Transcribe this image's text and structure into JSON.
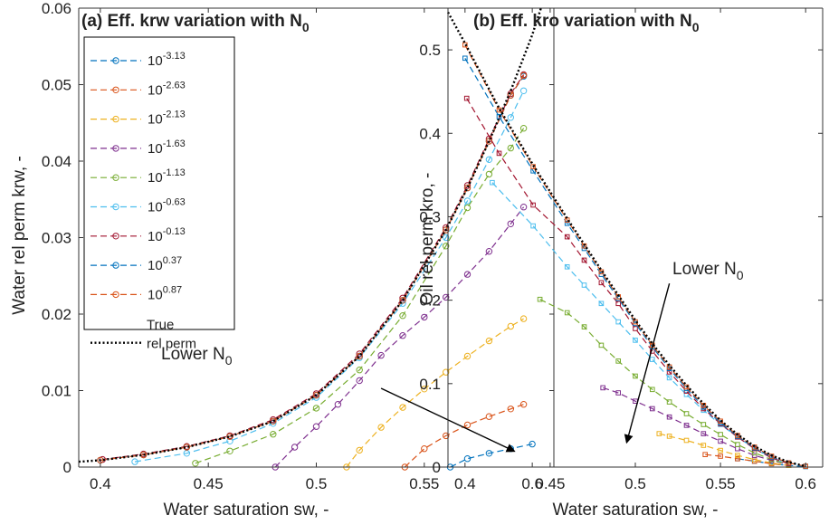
{
  "chart_data": [
    {
      "type": "line",
      "title": "(a)  Eff. krw variation with N",
      "title_subscript": "0",
      "xlabel": "Water saturation sw, -",
      "ylabel": "Water rel perm krw, -",
      "xlim": [
        0.39,
        0.61
      ],
      "ylim": [
        0,
        0.06
      ],
      "xticks": [
        "0.4",
        "0.45",
        "0.5",
        "0.55",
        "0.6"
      ],
      "yticks": [
        "0",
        "0.01",
        "0.02",
        "0.03",
        "0.04",
        "0.05",
        "0.06"
      ],
      "grid": false,
      "legend_placement": "top-left",
      "annotation": {
        "text": "Lower N",
        "subscript": "0",
        "arrow_from": [
          0.53,
          0.0103
        ],
        "arrow_to": [
          0.5915,
          0.0021
        ]
      },
      "series": [
        {
          "name": "10",
          "exp": "-3.13",
          "color": "#0072bd",
          "x": [
            0.562,
            0.57,
            0.58,
            0.59,
            0.6
          ],
          "y": [
            0.0,
            0.0011,
            0.0018,
            0.0024,
            0.003
          ]
        },
        {
          "name": "10",
          "exp": "-2.63",
          "color": "#d95319",
          "x": [
            0.541,
            0.55,
            0.56,
            0.57,
            0.58,
            0.59,
            0.596
          ],
          "y": [
            0.0,
            0.0024,
            0.0041,
            0.0055,
            0.0066,
            0.0076,
            0.0082
          ]
        },
        {
          "name": "10",
          "exp": "-2.13",
          "color": "#edb120",
          "x": [
            0.514,
            0.52,
            0.53,
            0.54,
            0.55,
            0.56,
            0.57,
            0.58,
            0.59,
            0.596
          ],
          "y": [
            0.0,
            0.0022,
            0.0052,
            0.0078,
            0.0102,
            0.0124,
            0.0145,
            0.0165,
            0.0184,
            0.0194
          ]
        },
        {
          "name": "10",
          "exp": "-1.63",
          "color": "#7e2f8e",
          "x": [
            0.481,
            0.49,
            0.5,
            0.51,
            0.52,
            0.53,
            0.54,
            0.55,
            0.56,
            0.57,
            0.58,
            0.59,
            0.596
          ],
          "y": [
            0.0,
            0.0026,
            0.0053,
            0.0082,
            0.0113,
            0.0146,
            0.0172,
            0.0196,
            0.0222,
            0.0252,
            0.0282,
            0.0318,
            0.034
          ]
        },
        {
          "name": "10",
          "exp": "-1.13",
          "color": "#77ac30",
          "x": [
            0.444,
            0.46,
            0.48,
            0.5,
            0.52,
            0.54,
            0.56,
            0.57,
            0.58,
            0.59,
            0.596
          ],
          "y": [
            0.0005,
            0.0021,
            0.0043,
            0.0077,
            0.0127,
            0.0198,
            0.0289,
            0.0339,
            0.0383,
            0.0417,
            0.0443
          ]
        },
        {
          "name": "10",
          "exp": "-0.63",
          "color": "#4dbeee",
          "x": [
            0.416,
            0.44,
            0.46,
            0.48,
            0.5,
            0.52,
            0.54,
            0.56,
            0.57,
            0.58,
            0.59,
            0.596
          ],
          "y": [
            0.0007,
            0.0018,
            0.0034,
            0.0057,
            0.0091,
            0.0143,
            0.0214,
            0.03,
            0.0348,
            0.0402,
            0.0457,
            0.0492
          ]
        },
        {
          "name": "10",
          "exp": "-0.13",
          "color": "#a2142f",
          "x": [
            0.401,
            0.42,
            0.44,
            0.46,
            0.48,
            0.5,
            0.52,
            0.54,
            0.56,
            0.57,
            0.58,
            0.59,
            0.596
          ],
          "y": [
            0.001,
            0.0017,
            0.0027,
            0.0041,
            0.0062,
            0.0096,
            0.0148,
            0.0221,
            0.0313,
            0.0368,
            0.0429,
            0.0488,
            0.0513
          ]
        },
        {
          "name": "10",
          "exp": "0.37",
          "color": "#0072bd",
          "x": [
            0.4,
            0.42,
            0.44,
            0.46,
            0.48,
            0.5,
            0.52,
            0.54,
            0.56,
            0.57,
            0.58,
            0.59,
            0.596
          ],
          "y": [
            0.0009,
            0.0016,
            0.0026,
            0.004,
            0.006,
            0.0094,
            0.0145,
            0.0218,
            0.031,
            0.0365,
            0.0426,
            0.0486,
            0.0511
          ]
        },
        {
          "name": "10",
          "exp": "0.87",
          "color": "#d95319",
          "x": [
            0.4,
            0.42,
            0.44,
            0.46,
            0.48,
            0.5,
            0.52,
            0.54,
            0.56,
            0.57,
            0.58,
            0.59,
            0.596
          ],
          "y": [
            0.0009,
            0.0016,
            0.0026,
            0.004,
            0.006,
            0.0094,
            0.0145,
            0.0218,
            0.031,
            0.0365,
            0.0426,
            0.0486,
            0.0512
          ]
        },
        {
          "name": "True rel perm",
          "name_line2": "rel perm",
          "name_line1": "True",
          "color": "#000000",
          "dotted": true,
          "x": [
            0.39,
            0.4,
            0.42,
            0.44,
            0.46,
            0.48,
            0.5,
            0.52,
            0.54,
            0.56,
            0.57,
            0.58,
            0.59,
            0.6,
            0.604
          ],
          "y": [
            0.0007,
            0.0009,
            0.0016,
            0.0026,
            0.004,
            0.006,
            0.0094,
            0.0145,
            0.0218,
            0.031,
            0.0365,
            0.0426,
            0.0492,
            0.0565,
            0.06
          ]
        }
      ]
    },
    {
      "type": "line",
      "title": "(b)  Eff. kro variation with N",
      "title_subscript": "0",
      "xlabel": "Water saturation sw, -",
      "ylabel": "Oil rel perm kro, -",
      "xlim": [
        0.39,
        0.61
      ],
      "ylim": [
        0,
        0.55
      ],
      "xticks": [
        "0.4",
        "0.45",
        "0.5",
        "0.55",
        "0.6"
      ],
      "yticks": [
        "0",
        "0.1",
        "0.2",
        "0.3",
        "0.4",
        "0.5"
      ],
      "grid": false,
      "annotation": {
        "text": "Lower N",
        "subscript": "0",
        "arrow_from": [
          0.52,
          0.22
        ],
        "arrow_to": [
          0.495,
          0.03
        ]
      },
      "series": [
        {
          "color": "#0072bd",
          "x": [
            0.56,
            0.57,
            0.58,
            0.59,
            0.6
          ],
          "y": [
            0.01,
            0.007,
            0.004,
            0.002,
            0.0005
          ]
        },
        {
          "color": "#d95319",
          "x": [
            0.541,
            0.55,
            0.56,
            0.57,
            0.58,
            0.59
          ],
          "y": [
            0.015,
            0.013,
            0.01,
            0.007,
            0.004,
            0.002
          ]
        },
        {
          "color": "#edb120",
          "x": [
            0.514,
            0.52,
            0.53,
            0.54,
            0.55,
            0.56,
            0.57,
            0.58,
            0.59
          ],
          "y": [
            0.04,
            0.037,
            0.032,
            0.026,
            0.02,
            0.014,
            0.009,
            0.005,
            0.002
          ]
        },
        {
          "color": "#7e2f8e",
          "x": [
            0.481,
            0.49,
            0.5,
            0.51,
            0.52,
            0.53,
            0.54,
            0.55,
            0.56,
            0.57,
            0.58,
            0.59
          ],
          "y": [
            0.095,
            0.089,
            0.079,
            0.07,
            0.06,
            0.05,
            0.04,
            0.031,
            0.022,
            0.014,
            0.008,
            0.003
          ]
        },
        {
          "color": "#77ac30",
          "x": [
            0.444,
            0.46,
            0.47,
            0.48,
            0.49,
            0.5,
            0.51,
            0.52,
            0.53,
            0.54,
            0.55,
            0.56,
            0.57,
            0.58,
            0.59
          ],
          "y": [
            0.201,
            0.185,
            0.168,
            0.146,
            0.127,
            0.109,
            0.093,
            0.078,
            0.064,
            0.051,
            0.039,
            0.027,
            0.017,
            0.009,
            0.003
          ]
        },
        {
          "color": "#4dbeee",
          "x": [
            0.416,
            0.44,
            0.46,
            0.47,
            0.48,
            0.49,
            0.5,
            0.51,
            0.52,
            0.53,
            0.54,
            0.55,
            0.56,
            0.57,
            0.58,
            0.59
          ],
          "y": [
            0.341,
            0.289,
            0.24,
            0.218,
            0.196,
            0.174,
            0.152,
            0.129,
            0.107,
            0.087,
            0.068,
            0.051,
            0.036,
            0.022,
            0.011,
            0.004
          ]
        },
        {
          "color": "#a2142f",
          "x": [
            0.401,
            0.42,
            0.44,
            0.46,
            0.47,
            0.48,
            0.49,
            0.5,
            0.51,
            0.52,
            0.53,
            0.54,
            0.55,
            0.56,
            0.57,
            0.58,
            0.59
          ],
          "y": [
            0.442,
            0.376,
            0.314,
            0.276,
            0.248,
            0.221,
            0.196,
            0.166,
            0.139,
            0.114,
            0.091,
            0.07,
            0.052,
            0.036,
            0.022,
            0.011,
            0.004
          ]
        },
        {
          "color": "#0072bd",
          "x": [
            0.4,
            0.42,
            0.44,
            0.46,
            0.47,
            0.48,
            0.49,
            0.5,
            0.51,
            0.52,
            0.53,
            0.54,
            0.55,
            0.56,
            0.57,
            0.58,
            0.59,
            0.6
          ],
          "y": [
            0.49,
            0.42,
            0.355,
            0.292,
            0.262,
            0.231,
            0.202,
            0.172,
            0.144,
            0.118,
            0.094,
            0.072,
            0.053,
            0.037,
            0.023,
            0.012,
            0.005,
            0.001
          ]
        },
        {
          "color": "#d95319",
          "x": [
            0.4,
            0.42,
            0.44,
            0.46,
            0.47,
            0.48,
            0.49,
            0.5,
            0.51,
            0.52,
            0.53,
            0.54,
            0.55,
            0.56,
            0.57,
            0.58,
            0.59,
            0.6
          ],
          "y": [
            0.506,
            0.428,
            0.36,
            0.296,
            0.265,
            0.234,
            0.204,
            0.174,
            0.146,
            0.12,
            0.096,
            0.074,
            0.055,
            0.038,
            0.024,
            0.013,
            0.005,
            0.001
          ]
        },
        {
          "color": "#000000",
          "dotted": true,
          "x": [
            0.39,
            0.4,
            0.42,
            0.44,
            0.46,
            0.47,
            0.48,
            0.49,
            0.5,
            0.51,
            0.52,
            0.53,
            0.54,
            0.55,
            0.56,
            0.57,
            0.58,
            0.59,
            0.6
          ],
          "y": [
            0.545,
            0.508,
            0.43,
            0.362,
            0.298,
            0.267,
            0.236,
            0.206,
            0.176,
            0.148,
            0.122,
            0.098,
            0.076,
            0.056,
            0.039,
            0.025,
            0.014,
            0.006,
            0.001
          ]
        }
      ]
    }
  ]
}
